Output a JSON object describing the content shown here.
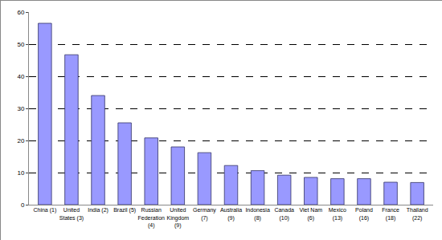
{
  "chart_data": {
    "type": "bar",
    "categories": [
      "China (1)",
      "United States (3)",
      "India (2)",
      "Brazil (5)",
      "Russian Federation (4)",
      "United Kingdom (9)",
      "Germany (7)",
      "Australia (9)",
      "Indonesia (8)",
      "Canada (10)",
      "Viet Nam (6)",
      "Mexico (13)",
      "Poland (16)",
      "France (18)",
      "Thailand (22)"
    ],
    "values": [
      56.5,
      46.7,
      34,
      25.5,
      20.8,
      18,
      16.2,
      12.2,
      10.6,
      9.2,
      8.5,
      8.1,
      8.1,
      7,
      6.9
    ],
    "color": "#9999ff",
    "ylim": [
      0,
      60
    ],
    "yticks": [
      0,
      10,
      20,
      30,
      40,
      50,
      60
    ],
    "grid": true
  }
}
